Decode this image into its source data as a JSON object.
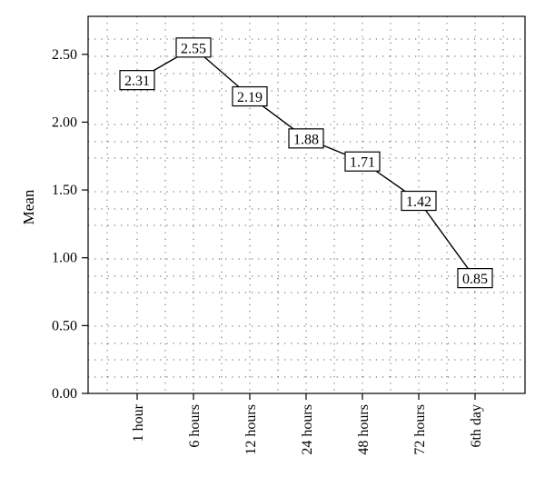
{
  "chart_data": {
    "type": "line",
    "title": "",
    "xlabel": "",
    "ylabel": "Mean",
    "categories": [
      "1 hour",
      "6 hours",
      "12 hours",
      "24 hours",
      "48 hours",
      "72 hours",
      "6th day"
    ],
    "series": [
      {
        "values": [
          2.31,
          2.55,
          2.19,
          1.88,
          1.71,
          1.42,
          0.85
        ]
      }
    ],
    "data_labels": [
      "2.31",
      "2.55",
      "2.19",
      "1.88",
      "1.71",
      "1.42",
      "0.85"
    ],
    "yticks": [
      "0.00",
      "0.50",
      "1.00",
      "1.50",
      "2.00",
      "2.50"
    ],
    "ylim": [
      0,
      2.78
    ],
    "grid": "dotted",
    "legend": "none",
    "colors": {
      "line": "#000000",
      "grid": "#555555",
      "axis": "#000000"
    }
  }
}
